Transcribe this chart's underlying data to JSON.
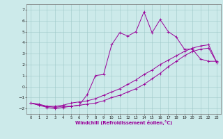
{
  "xlabel": "Windchill (Refroidissement éolien,°C)",
  "bg_color": "#cceaea",
  "line_color": "#990099",
  "xlim": [
    -0.5,
    23.5
  ],
  "ylim": [
    -2.5,
    7.5
  ],
  "xticks": [
    0,
    1,
    2,
    3,
    4,
    5,
    6,
    7,
    8,
    9,
    10,
    11,
    12,
    13,
    14,
    15,
    16,
    17,
    18,
    19,
    20,
    21,
    22,
    23
  ],
  "yticks": [
    -2,
    -1,
    0,
    1,
    2,
    3,
    4,
    5,
    6,
    7
  ],
  "line1_x": [
    0,
    1,
    2,
    3,
    4,
    5,
    6,
    7,
    8,
    9,
    10,
    11,
    12,
    13,
    14,
    15,
    16,
    17,
    18,
    19,
    20,
    21,
    22,
    23
  ],
  "line1_y": [
    -1.5,
    -1.7,
    -1.8,
    -1.8,
    -1.7,
    -1.5,
    -1.4,
    -1.3,
    -1.1,
    -0.8,
    -0.5,
    -0.2,
    0.2,
    0.6,
    1.1,
    1.5,
    2.0,
    2.4,
    2.8,
    3.2,
    3.5,
    3.7,
    3.8,
    2.2
  ],
  "line2_x": [
    0,
    1,
    2,
    3,
    4,
    5,
    6,
    7,
    8,
    9,
    10,
    11,
    12,
    13,
    14,
    15,
    16,
    17,
    18,
    19,
    20,
    21,
    22,
    23
  ],
  "line2_y": [
    -1.5,
    -1.7,
    -1.9,
    -2.0,
    -1.9,
    -1.8,
    -1.7,
    -1.6,
    -1.5,
    -1.3,
    -1.0,
    -0.8,
    -0.5,
    -0.2,
    0.2,
    0.7,
    1.2,
    1.8,
    2.3,
    2.8,
    3.2,
    3.4,
    3.5,
    2.2
  ],
  "line3_x": [
    0,
    1,
    2,
    3,
    4,
    5,
    6,
    7,
    8,
    9,
    10,
    11,
    12,
    13,
    14,
    15,
    16,
    17,
    18,
    19,
    20,
    21,
    22,
    23
  ],
  "line3_y": [
    -1.5,
    -1.6,
    -1.8,
    -1.9,
    -1.8,
    -1.8,
    -1.7,
    -0.7,
    1.0,
    1.1,
    3.8,
    4.9,
    4.6,
    5.0,
    6.8,
    4.9,
    6.1,
    5.0,
    4.5,
    3.4,
    3.4,
    2.5,
    2.3,
    2.3
  ]
}
